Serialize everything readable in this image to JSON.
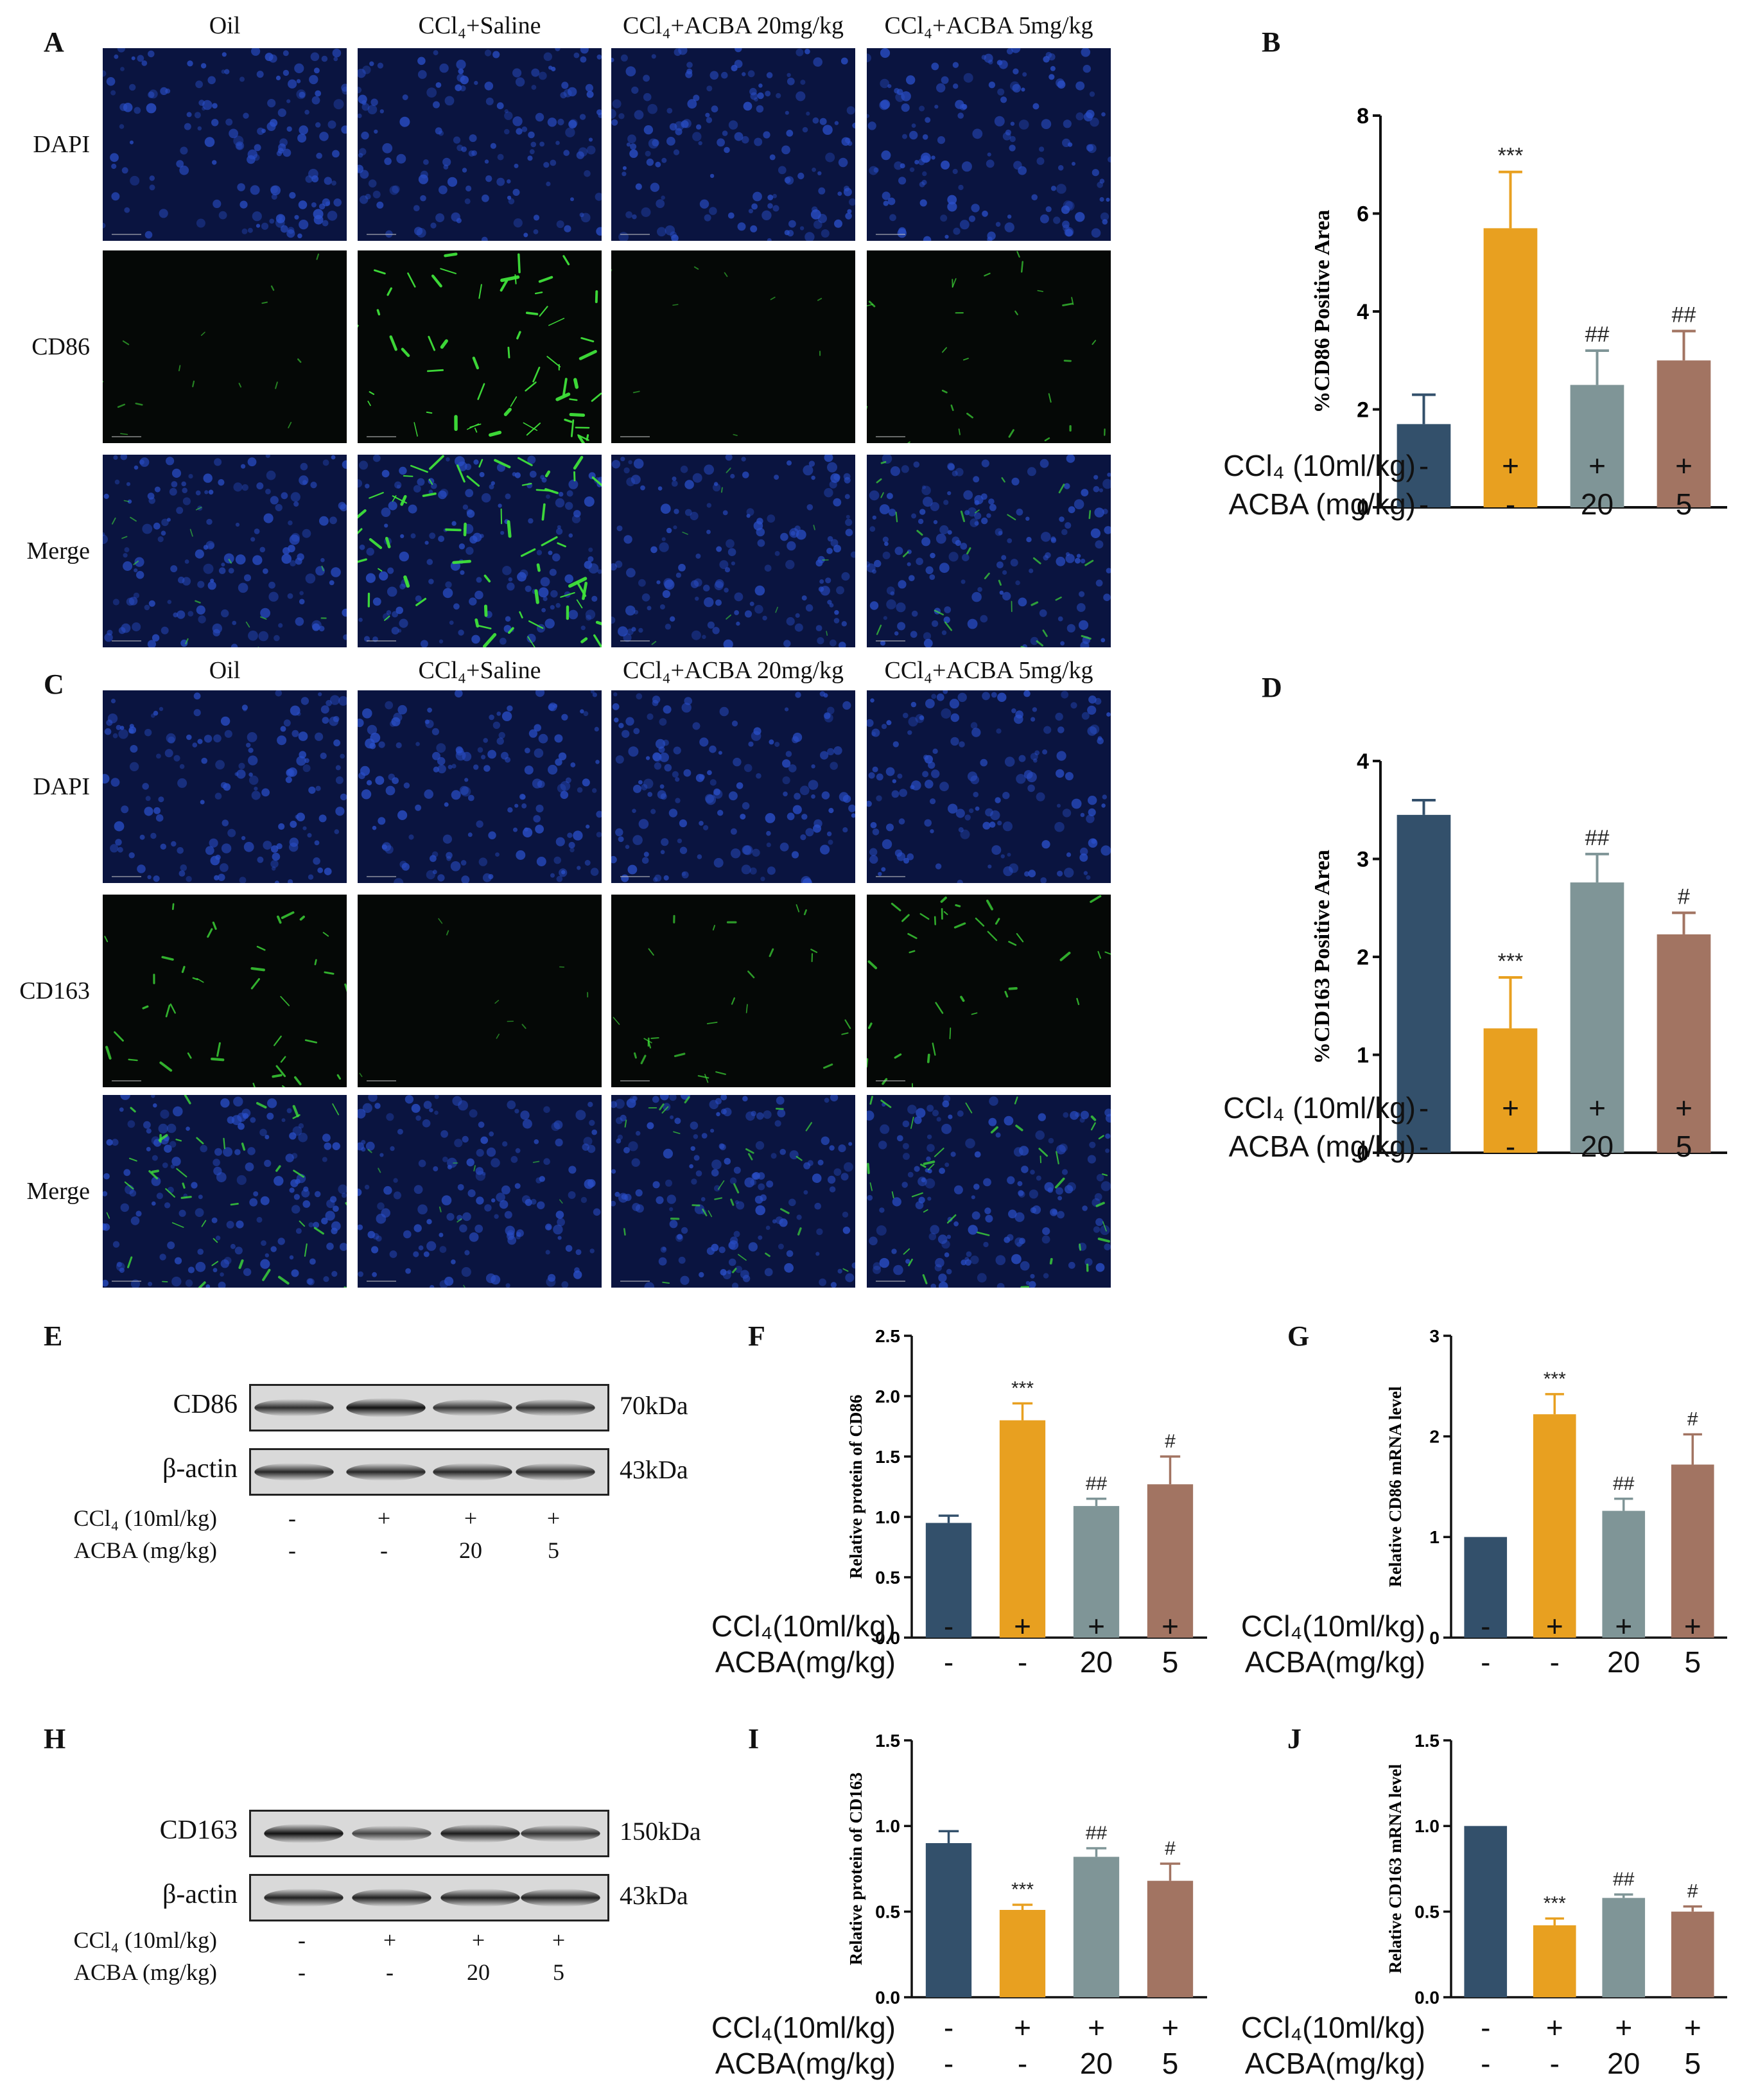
{
  "panels": {
    "A": "A",
    "B": "B",
    "C": "C",
    "D": "D",
    "E": "E",
    "F": "F",
    "G": "G",
    "H": "H",
    "I": "I",
    "J": "J"
  },
  "micro_groups": [
    {
      "cols": [
        "Oil",
        "CCl₄+Saline",
        "CCl₄+ACBA 20mg/kg",
        "CCl₄+ACBA 5mg/kg"
      ],
      "rows": [
        "DAPI",
        "CD86",
        "Merge"
      ]
    },
    {
      "cols": [
        "Oil",
        "CCl₄+Saline",
        "CCl₄+ACBA 20mg/kg",
        "CCl₄+ACBA 5mg/kg"
      ],
      "rows": [
        "DAPI",
        "CD163",
        "Merge"
      ]
    }
  ],
  "western": [
    {
      "target": "CD86",
      "target_kda": "70kDa",
      "control": "β-actin",
      "control_kda": "43kDa",
      "target_intensity": [
        0.75,
        1.0,
        0.7,
        0.72
      ],
      "control_intensity": [
        0.8,
        0.8,
        0.8,
        0.78
      ]
    },
    {
      "target": "CD163",
      "target_kda": "150kDa",
      "control": "β-actin",
      "control_kda": "43kDa",
      "target_intensity": [
        1.0,
        0.55,
        0.9,
        0.7
      ],
      "control_intensity": [
        0.85,
        0.85,
        0.85,
        0.85
      ]
    }
  ],
  "conditions": {
    "ccl4": "CCl₄ (10ml/kg)",
    "acba": "ACBA (mg/kg)",
    "ccl4_compact": "CCl₄(10ml/kg)",
    "acba_compact": "ACBA(mg/kg)",
    "ccl4_signs": [
      "-",
      "+",
      "+",
      "+"
    ],
    "acba_signs": [
      "-",
      "-",
      "20",
      "5"
    ]
  },
  "bar_colors": [
    "#33506b",
    "#e8a020",
    "#7f9597",
    "#a27462"
  ],
  "chart_data": [
    {
      "panel": "B",
      "type": "bar",
      "ylabel": "%CD86 Positive Area",
      "ylim": [
        0,
        8
      ],
      "yticks": [
        0,
        2,
        4,
        6,
        8
      ],
      "values": [
        1.7,
        5.7,
        2.5,
        3.0
      ],
      "errors": [
        0.6,
        1.15,
        0.7,
        0.6
      ],
      "annotations": [
        "",
        "***",
        "##",
        "##"
      ]
    },
    {
      "panel": "D",
      "type": "bar",
      "ylabel": "%CD163 Positive Area",
      "ylim": [
        0,
        4
      ],
      "yticks": [
        0,
        1,
        2,
        3,
        4
      ],
      "values": [
        3.45,
        1.27,
        2.76,
        2.23
      ],
      "errors": [
        0.15,
        0.52,
        0.29,
        0.22
      ],
      "annotations": [
        "",
        "***",
        "##",
        "#"
      ]
    },
    {
      "panel": "F",
      "type": "bar",
      "ylabel": "Relative protein of CD86",
      "ylim": [
        0,
        2.5
      ],
      "yticks": [
        0.0,
        0.5,
        1.0,
        1.5,
        2.0,
        2.5
      ],
      "values": [
        0.95,
        1.8,
        1.09,
        1.27
      ],
      "errors": [
        0.06,
        0.14,
        0.06,
        0.23
      ],
      "annotations": [
        "",
        "***",
        "##",
        "#"
      ]
    },
    {
      "panel": "G",
      "type": "bar",
      "ylabel": "Relative CD86 mRNA level",
      "ylim": [
        0,
        3
      ],
      "yticks": [
        0,
        1,
        2,
        3
      ],
      "values": [
        1.0,
        2.22,
        1.26,
        1.72
      ],
      "errors": [
        0,
        0.2,
        0.12,
        0.3
      ],
      "annotations": [
        "",
        "***",
        "##",
        "#"
      ]
    },
    {
      "panel": "I",
      "type": "bar",
      "ylabel": "Relative protein of CD163",
      "ylim": [
        0,
        1.5
      ],
      "yticks": [
        0.0,
        0.5,
        1.0,
        1.5
      ],
      "values": [
        0.9,
        0.51,
        0.82,
        0.68
      ],
      "errors": [
        0.07,
        0.03,
        0.05,
        0.1
      ],
      "annotations": [
        "",
        "***",
        "##",
        "#"
      ]
    },
    {
      "panel": "J",
      "type": "bar",
      "ylabel": "Relative CD163 mRNA level",
      "ylim": [
        0,
        1.5
      ],
      "yticks": [
        0.0,
        0.5,
        1.0,
        1.5
      ],
      "values": [
        1.0,
        0.42,
        0.58,
        0.5
      ],
      "errors": [
        0,
        0.04,
        0.02,
        0.03
      ],
      "annotations": [
        "",
        "***",
        "##",
        "#"
      ]
    }
  ]
}
